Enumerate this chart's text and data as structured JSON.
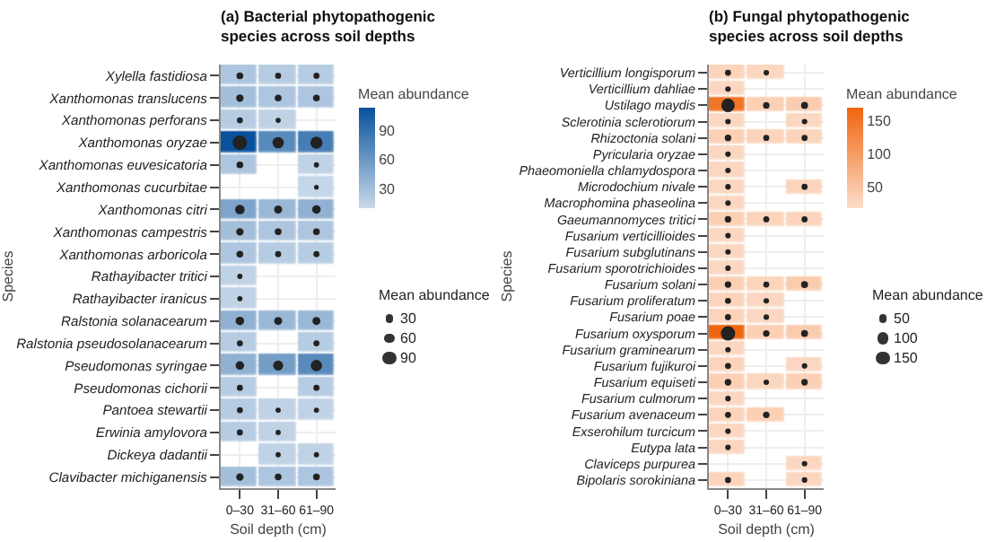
{
  "chart_data": [
    {
      "type": "heatmap",
      "title": "(a) Bacterial phytopathogenic species across soil depths",
      "xlabel": "Soil depth (cm)",
      "ylabel": "Species",
      "clabel": "Mean abundance",
      "legend_title": "Mean abundance",
      "color": "#08519c",
      "grid": true,
      "categories": [
        "0–30",
        "31–60",
        "61–90"
      ],
      "y_categories": [
        "Xylella fastidiosa",
        "Xanthomonas translucens",
        "Xanthomonas perforans",
        "Xanthomonas oryzae",
        "Xanthomonas euvesicatoria",
        "Xanthomonas cucurbitae",
        "Xanthomonas citri",
        "Xanthomonas campestris",
        "Xanthomonas arboricola",
        "Rathayibacter tritici",
        "Rathayibacter iranicus",
        "Ralstonia solanacearum",
        "Ralstonia pseudosolanacearum",
        "Pseudomonas syringae",
        "Pseudomonas cichorii",
        "Pantoea stewartii",
        "Erwinia amylovora",
        "Dickeya dadantii",
        "Clavibacter michiganensis"
      ],
      "cells": [
        [
          25,
          20,
          20
        ],
        [
          30,
          25,
          25
        ],
        [
          20,
          15,
          null
        ],
        [
          113,
          70,
          80
        ],
        [
          25,
          null,
          15
        ],
        [
          null,
          null,
          12
        ],
        [
          50,
          35,
          40
        ],
        [
          30,
          25,
          25
        ],
        [
          25,
          20,
          20
        ],
        [
          15,
          null,
          null
        ],
        [
          15,
          null,
          null
        ],
        [
          40,
          35,
          35
        ],
        [
          20,
          null,
          20
        ],
        [
          40,
          55,
          70
        ],
        [
          20,
          null,
          20
        ],
        [
          20,
          15,
          15
        ],
        [
          20,
          15,
          null
        ],
        [
          null,
          15,
          15
        ],
        [
          30,
          25,
          25
        ]
      ],
      "clim": [
        10,
        113
      ],
      "cticks": [
        30,
        60,
        90
      ],
      "annotations": [
        "30",
        "60",
        "90"
      ]
    },
    {
      "type": "heatmap",
      "title": "(b) Fungal phytopathogenic species across soil depths",
      "xlabel": "Soil depth (cm)",
      "ylabel": "Species",
      "clabel": "Mean abundance",
      "legend_title": "Mean abundance",
      "color": "#f0650e",
      "grid": true,
      "categories": [
        "0–30",
        "31–60",
        "61–90"
      ],
      "y_categories": [
        "Verticillium longisporum",
        "Verticillium dahliae",
        "Ustilago maydis",
        "Sclerotinia sclerotiorum",
        "Rhizoctonia solani",
        "Pyricularia oryzae",
        "Phaeomoniella chlamydospora",
        "Microdochium nivale",
        "Macrophomina phaseolina",
        "Gaeumannomyces tritici",
        "Fusarium verticillioides",
        "Fusarium subglutinans",
        "Fusarium sporotrichioides",
        "Fusarium solani",
        "Fusarium proliferatum",
        "Fusarium poae",
        "Fusarium oxysporum",
        "Fusarium graminearum",
        "Fusarium fujikuroi",
        "Fusarium equiseti",
        "Fusarium culmorum",
        "Fusarium avenaceum",
        "Exserohilum turcicum",
        "Eutypa lata",
        "Claviceps purpurea",
        "Bipolaris sorokiniana"
      ],
      "cells": [
        [
          30,
          25,
          null
        ],
        [
          25,
          null,
          null
        ],
        [
          150,
          35,
          40
        ],
        [
          25,
          null,
          25
        ],
        [
          35,
          30,
          30
        ],
        [
          25,
          null,
          null
        ],
        [
          25,
          null,
          null
        ],
        [
          25,
          null,
          30
        ],
        [
          25,
          null,
          null
        ],
        [
          35,
          30,
          30
        ],
        [
          25,
          null,
          null
        ],
        [
          25,
          null,
          null
        ],
        [
          25,
          null,
          null
        ],
        [
          35,
          30,
          40
        ],
        [
          30,
          25,
          null
        ],
        [
          30,
          25,
          null
        ],
        [
          170,
          35,
          40
        ],
        [
          25,
          null,
          null
        ],
        [
          30,
          null,
          25
        ],
        [
          35,
          25,
          35
        ],
        [
          25,
          null,
          null
        ],
        [
          30,
          35,
          null
        ],
        [
          25,
          null,
          null
        ],
        [
          25,
          null,
          null
        ],
        [
          null,
          null,
          25
        ],
        [
          30,
          null,
          25
        ]
      ],
      "clim": [
        18,
        170
      ],
      "cticks": [
        50,
        100,
        150
      ],
      "annotations": [
        "50",
        "100",
        "150"
      ]
    }
  ]
}
